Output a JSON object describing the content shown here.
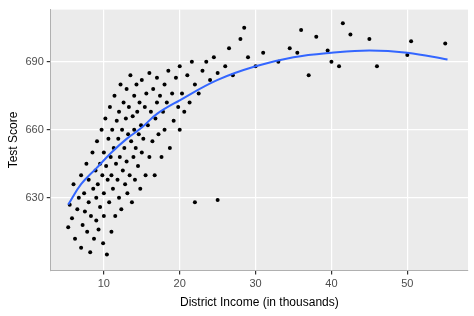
{
  "chart_data": {
    "type": "scatter",
    "x_label": "District Income (in thousands)",
    "y_label": "Test Score",
    "xlim": [
      3,
      58
    ],
    "xticks": [
      10,
      20,
      30,
      40,
      50
    ],
    "ylim": [
      598,
      713
    ],
    "yticks": [
      630,
      660,
      690
    ],
    "grid": true,
    "series": [
      {
        "type": "scatter",
        "color": "#000000",
        "marker": "circle",
        "x": [
          5.3,
          5.5,
          5.8,
          6,
          6.2,
          6.5,
          6.7,
          7,
          7,
          7.2,
          7.4,
          7.5,
          7.7,
          7.8,
          8,
          8,
          8.2,
          8.3,
          8.5,
          8.6,
          8.7,
          8.9,
          9,
          9,
          9.1,
          9.2,
          9.3,
          9.5,
          9.5,
          9.7,
          9.8,
          9.9,
          10,
          10,
          10,
          10.2,
          10.3,
          10.4,
          10.5,
          10.6,
          10.7,
          10.8,
          10.9,
          11,
          11,
          11.1,
          11.2,
          11.3,
          11.4,
          11.5,
          11.6,
          11.7,
          11.8,
          11.9,
          12,
          12,
          12.1,
          12.2,
          12.3,
          12.4,
          12.5,
          12.6,
          12.7,
          12.8,
          12.9,
          13,
          13,
          13.1,
          13.2,
          13.3,
          13.4,
          13.5,
          13.6,
          13.7,
          13.8,
          13.9,
          14,
          14,
          14.1,
          14.2,
          14.3,
          14.4,
          14.5,
          14.6,
          14.7,
          14.8,
          14.9,
          15,
          15,
          15.2,
          15.4,
          15.5,
          15.6,
          15.8,
          16,
          16,
          16.2,
          16.4,
          16.5,
          16.7,
          16.8,
          17,
          17,
          17.2,
          17.4,
          17.6,
          17.8,
          18,
          18,
          18.3,
          18.5,
          18.7,
          19,
          19.2,
          19.5,
          19.8,
          20,
          20,
          20.3,
          20.6,
          21,
          21.3,
          21.6,
          22,
          22,
          22.5,
          23,
          23.5,
          24,
          24.5,
          25,
          25,
          26,
          26.5,
          27,
          28,
          28.5,
          29,
          30,
          31,
          33,
          34.5,
          35.5,
          36,
          37,
          38,
          39.5,
          40,
          41,
          41.5,
          42.5,
          45,
          46,
          50,
          50.5,
          55
        ],
        "values": [
          617,
          627,
          621,
          636,
          612,
          625,
          630,
          608,
          640,
          618,
          632,
          624,
          645,
          615,
          628,
          638,
          606,
          622,
          650,
          634,
          612,
          642,
          620,
          630,
          655,
          636,
          616,
          645,
          626,
          660,
          640,
          610,
          650,
          632,
          622,
          665,
          644,
          605,
          638,
          656,
          628,
          670,
          648,
          615,
          640,
          660,
          634,
          652,
          675,
          622,
          645,
          664,
          638,
          656,
          630,
          668,
          648,
          680,
          625,
          660,
          642,
          672,
          652,
          636,
          665,
          646,
          678,
          632,
          658,
          670,
          640,
          684,
          655,
          628,
          666,
          648,
          675,
          660,
          638,
          652,
          680,
          668,
          644,
          658,
          672,
          634,
          662,
          650,
          682,
          656,
          670,
          640,
          676,
          662,
          648,
          685,
          668,
          655,
          678,
          640,
          665,
          672,
          683,
          658,
          675,
          648,
          668,
          680,
          660,
          672,
          686,
          652,
          676,
          664,
          683,
          670,
          660,
          688,
          676,
          668,
          684,
          672,
          690,
          628,
          680,
          676,
          686,
          690,
          682,
          692,
          629,
          685,
          688,
          696,
          684,
          700,
          705,
          692,
          688,
          694,
          690,
          696,
          694,
          704,
          684,
          701,
          695,
          690,
          688,
          707,
          702,
          700,
          688,
          693,
          699,
          698
        ]
      },
      {
        "type": "line",
        "color": "#3366ff",
        "line_style": "solid",
        "x": [
          5.3,
          7,
          9,
          11,
          13,
          15,
          17,
          20,
          25,
          30,
          35,
          40,
          45,
          50,
          55.3
        ],
        "values": [
          627,
          636,
          643,
          650,
          656,
          661,
          667,
          673,
          682,
          688,
          692,
          694,
          695,
          694,
          691
        ]
      }
    ]
  }
}
